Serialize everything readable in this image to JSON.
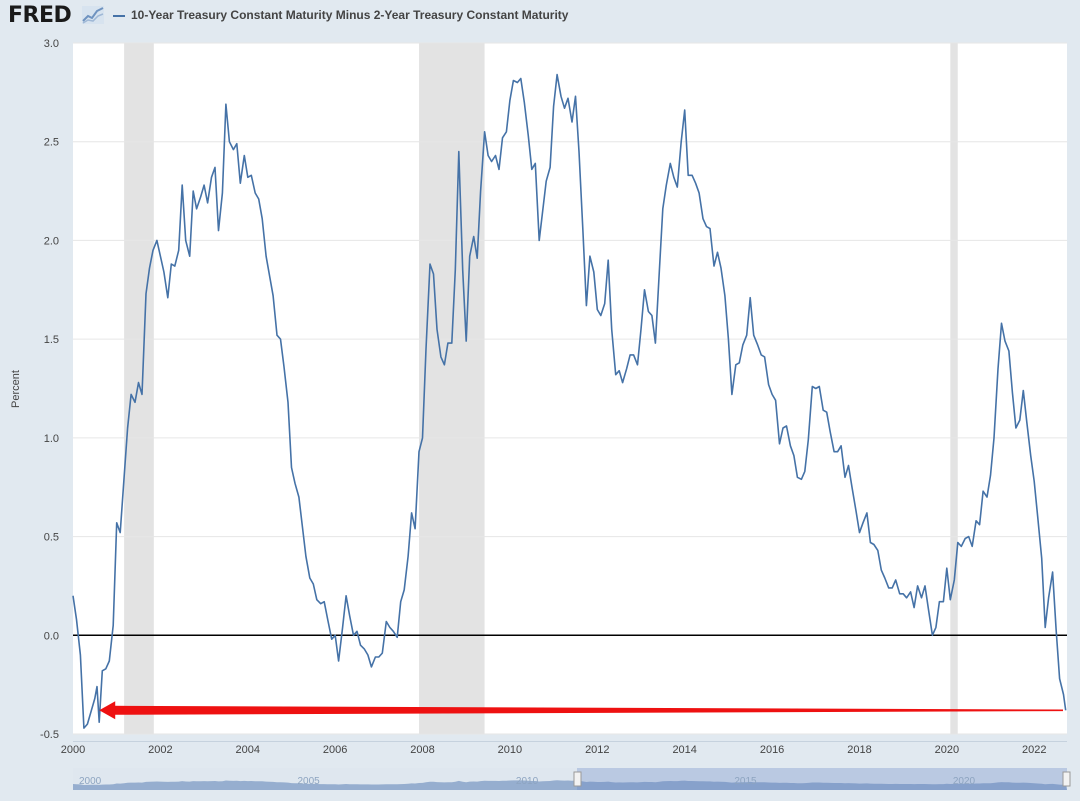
{
  "header": {
    "logo_text": "FRED",
    "logo_icon": "fred-chart-icon",
    "legend_label": "10-Year Treasury Constant Maturity Minus 2-Year Treasury Constant Maturity"
  },
  "colors": {
    "series": "#4572a7",
    "recession": "#e3e3e3",
    "zero_line": "#000000",
    "arrow": "#ee1111",
    "grid": "#e6e6e6",
    "navigator_fill": "#7d9bc4"
  },
  "chart_data": {
    "type": "line",
    "title": "",
    "xlabel": "",
    "ylabel": "Percent",
    "xlim": [
      2000.0,
      2022.75
    ],
    "ylim": [
      -0.5,
      3.0
    ],
    "y_ticks": [
      -0.5,
      0.0,
      0.5,
      1.0,
      1.5,
      2.0,
      2.5,
      3.0
    ],
    "y_tick_labels": [
      "-0.5",
      "0.0",
      "0.5",
      "1.0",
      "1.5",
      "2.0",
      "2.5",
      "3.0"
    ],
    "x_ticks": [
      2000,
      2002,
      2004,
      2006,
      2008,
      2010,
      2012,
      2014,
      2016,
      2018,
      2020,
      2022
    ],
    "x_tick_labels": [
      "2000",
      "2002",
      "2004",
      "2006",
      "2008",
      "2010",
      "2012",
      "2014",
      "2016",
      "2018",
      "2020",
      "2022"
    ],
    "grid": "horizontal",
    "reference_line_y": 0.0,
    "recessions": [
      [
        2001.17,
        2001.85
      ],
      [
        2007.92,
        2009.42
      ],
      [
        2020.08,
        2020.25
      ]
    ],
    "arrow": {
      "from": [
        2022.75,
        -0.38
      ],
      "to": [
        2000.6,
        -0.38
      ]
    },
    "navigator_labels": [
      "2000",
      "2005",
      "2010",
      "2015",
      "2020"
    ],
    "series": [
      {
        "name": "10-Year Treasury Constant Maturity Minus 2-Year Treasury Constant Maturity",
        "points": [
          [
            2000.0,
            0.2
          ],
          [
            2000.08,
            0.08
          ],
          [
            2000.17,
            -0.1
          ],
          [
            2000.25,
            -0.47
          ],
          [
            2000.33,
            -0.45
          ],
          [
            2000.42,
            -0.38
          ],
          [
            2000.5,
            -0.32
          ],
          [
            2000.55,
            -0.26
          ],
          [
            2000.6,
            -0.44
          ],
          [
            2000.67,
            -0.18
          ],
          [
            2000.75,
            -0.17
          ],
          [
            2000.83,
            -0.13
          ],
          [
            2000.92,
            0.05
          ],
          [
            2001.0,
            0.57
          ],
          [
            2001.08,
            0.52
          ],
          [
            2001.17,
            0.8
          ],
          [
            2001.25,
            1.05
          ],
          [
            2001.33,
            1.22
          ],
          [
            2001.42,
            1.18
          ],
          [
            2001.5,
            1.28
          ],
          [
            2001.58,
            1.22
          ],
          [
            2001.67,
            1.73
          ],
          [
            2001.75,
            1.86
          ],
          [
            2001.83,
            1.95
          ],
          [
            2001.92,
            2.0
          ],
          [
            2002.0,
            1.92
          ],
          [
            2002.08,
            1.84
          ],
          [
            2002.17,
            1.71
          ],
          [
            2002.25,
            1.88
          ],
          [
            2002.33,
            1.87
          ],
          [
            2002.42,
            1.95
          ],
          [
            2002.5,
            2.28
          ],
          [
            2002.58,
            2.0
          ],
          [
            2002.67,
            1.92
          ],
          [
            2002.75,
            2.25
          ],
          [
            2002.83,
            2.16
          ],
          [
            2002.92,
            2.22
          ],
          [
            2003.0,
            2.28
          ],
          [
            2003.08,
            2.19
          ],
          [
            2003.17,
            2.32
          ],
          [
            2003.25,
            2.37
          ],
          [
            2003.33,
            2.05
          ],
          [
            2003.42,
            2.24
          ],
          [
            2003.5,
            2.69
          ],
          [
            2003.58,
            2.5
          ],
          [
            2003.67,
            2.46
          ],
          [
            2003.75,
            2.49
          ],
          [
            2003.83,
            2.29
          ],
          [
            2003.92,
            2.43
          ],
          [
            2004.0,
            2.32
          ],
          [
            2004.08,
            2.33
          ],
          [
            2004.17,
            2.24
          ],
          [
            2004.25,
            2.21
          ],
          [
            2004.33,
            2.11
          ],
          [
            2004.42,
            1.92
          ],
          [
            2004.5,
            1.82
          ],
          [
            2004.58,
            1.72
          ],
          [
            2004.67,
            1.52
          ],
          [
            2004.75,
            1.5
          ],
          [
            2004.83,
            1.36
          ],
          [
            2004.92,
            1.18
          ],
          [
            2005.0,
            0.85
          ],
          [
            2005.08,
            0.77
          ],
          [
            2005.17,
            0.7
          ],
          [
            2005.25,
            0.55
          ],
          [
            2005.33,
            0.4
          ],
          [
            2005.42,
            0.29
          ],
          [
            2005.5,
            0.26
          ],
          [
            2005.58,
            0.18
          ],
          [
            2005.67,
            0.16
          ],
          [
            2005.75,
            0.17
          ],
          [
            2005.83,
            0.08
          ],
          [
            2005.92,
            -0.02
          ],
          [
            2006.0,
            0.0
          ],
          [
            2006.08,
            -0.13
          ],
          [
            2006.17,
            0.04
          ],
          [
            2006.25,
            0.2
          ],
          [
            2006.33,
            0.1
          ],
          [
            2006.42,
            0.0
          ],
          [
            2006.5,
            0.02
          ],
          [
            2006.58,
            -0.05
          ],
          [
            2006.67,
            -0.07
          ],
          [
            2006.75,
            -0.1
          ],
          [
            2006.83,
            -0.16
          ],
          [
            2006.92,
            -0.11
          ],
          [
            2007.0,
            -0.11
          ],
          [
            2007.08,
            -0.09
          ],
          [
            2007.17,
            0.07
          ],
          [
            2007.25,
            0.04
          ],
          [
            2007.33,
            0.02
          ],
          [
            2007.42,
            -0.01
          ],
          [
            2007.5,
            0.17
          ],
          [
            2007.58,
            0.23
          ],
          [
            2007.67,
            0.4
          ],
          [
            2007.75,
            0.62
          ],
          [
            2007.83,
            0.54
          ],
          [
            2007.92,
            0.93
          ],
          [
            2008.0,
            1.0
          ],
          [
            2008.08,
            1.45
          ],
          [
            2008.17,
            1.88
          ],
          [
            2008.25,
            1.83
          ],
          [
            2008.33,
            1.55
          ],
          [
            2008.42,
            1.41
          ],
          [
            2008.5,
            1.37
          ],
          [
            2008.58,
            1.48
          ],
          [
            2008.67,
            1.48
          ],
          [
            2008.75,
            1.85
          ],
          [
            2008.83,
            2.45
          ],
          [
            2008.92,
            1.85
          ],
          [
            2009.0,
            1.49
          ],
          [
            2009.08,
            1.92
          ],
          [
            2009.17,
            2.02
          ],
          [
            2009.25,
            1.91
          ],
          [
            2009.33,
            2.25
          ],
          [
            2009.42,
            2.55
          ],
          [
            2009.5,
            2.43
          ],
          [
            2009.58,
            2.4
          ],
          [
            2009.67,
            2.43
          ],
          [
            2009.75,
            2.36
          ],
          [
            2009.83,
            2.52
          ],
          [
            2009.92,
            2.55
          ],
          [
            2010.0,
            2.71
          ],
          [
            2010.08,
            2.81
          ],
          [
            2010.17,
            2.8
          ],
          [
            2010.25,
            2.82
          ],
          [
            2010.33,
            2.7
          ],
          [
            2010.42,
            2.53
          ],
          [
            2010.5,
            2.36
          ],
          [
            2010.58,
            2.39
          ],
          [
            2010.67,
            2.0
          ],
          [
            2010.75,
            2.15
          ],
          [
            2010.83,
            2.3
          ],
          [
            2010.92,
            2.37
          ],
          [
            2011.0,
            2.68
          ],
          [
            2011.08,
            2.84
          ],
          [
            2011.17,
            2.73
          ],
          [
            2011.25,
            2.67
          ],
          [
            2011.33,
            2.72
          ],
          [
            2011.42,
            2.6
          ],
          [
            2011.5,
            2.73
          ],
          [
            2011.58,
            2.45
          ],
          [
            2011.67,
            2.05
          ],
          [
            2011.75,
            1.67
          ],
          [
            2011.83,
            1.92
          ],
          [
            2011.92,
            1.84
          ],
          [
            2012.0,
            1.65
          ],
          [
            2012.08,
            1.62
          ],
          [
            2012.17,
            1.68
          ],
          [
            2012.25,
            1.9
          ],
          [
            2012.33,
            1.55
          ],
          [
            2012.42,
            1.32
          ],
          [
            2012.5,
            1.34
          ],
          [
            2012.58,
            1.28
          ],
          [
            2012.67,
            1.35
          ],
          [
            2012.75,
            1.42
          ],
          [
            2012.83,
            1.42
          ],
          [
            2012.92,
            1.37
          ],
          [
            2013.0,
            1.55
          ],
          [
            2013.08,
            1.75
          ],
          [
            2013.17,
            1.64
          ],
          [
            2013.25,
            1.62
          ],
          [
            2013.33,
            1.48
          ],
          [
            2013.42,
            1.85
          ],
          [
            2013.5,
            2.16
          ],
          [
            2013.58,
            2.28
          ],
          [
            2013.67,
            2.39
          ],
          [
            2013.75,
            2.32
          ],
          [
            2013.83,
            2.27
          ],
          [
            2013.92,
            2.5
          ],
          [
            2014.0,
            2.66
          ],
          [
            2014.08,
            2.33
          ],
          [
            2014.17,
            2.33
          ],
          [
            2014.25,
            2.29
          ],
          [
            2014.33,
            2.24
          ],
          [
            2014.42,
            2.11
          ],
          [
            2014.5,
            2.07
          ],
          [
            2014.58,
            2.06
          ],
          [
            2014.67,
            1.87
          ],
          [
            2014.75,
            1.94
          ],
          [
            2014.83,
            1.86
          ],
          [
            2014.92,
            1.72
          ],
          [
            2015.0,
            1.5
          ],
          [
            2015.08,
            1.22
          ],
          [
            2015.17,
            1.37
          ],
          [
            2015.25,
            1.38
          ],
          [
            2015.33,
            1.47
          ],
          [
            2015.42,
            1.52
          ],
          [
            2015.5,
            1.71
          ],
          [
            2015.58,
            1.52
          ],
          [
            2015.67,
            1.47
          ],
          [
            2015.75,
            1.42
          ],
          [
            2015.83,
            1.41
          ],
          [
            2015.92,
            1.27
          ],
          [
            2016.0,
            1.22
          ],
          [
            2016.08,
            1.19
          ],
          [
            2016.17,
            0.97
          ],
          [
            2016.25,
            1.05
          ],
          [
            2016.33,
            1.06
          ],
          [
            2016.42,
            0.96
          ],
          [
            2016.5,
            0.91
          ],
          [
            2016.58,
            0.8
          ],
          [
            2016.67,
            0.79
          ],
          [
            2016.75,
            0.83
          ],
          [
            2016.83,
            0.99
          ],
          [
            2016.92,
            1.26
          ],
          [
            2017.0,
            1.25
          ],
          [
            2017.08,
            1.26
          ],
          [
            2017.17,
            1.14
          ],
          [
            2017.25,
            1.13
          ],
          [
            2017.33,
            1.03
          ],
          [
            2017.42,
            0.93
          ],
          [
            2017.5,
            0.93
          ],
          [
            2017.58,
            0.96
          ],
          [
            2017.67,
            0.8
          ],
          [
            2017.75,
            0.86
          ],
          [
            2017.83,
            0.75
          ],
          [
            2017.92,
            0.63
          ],
          [
            2018.0,
            0.52
          ],
          [
            2018.08,
            0.57
          ],
          [
            2018.17,
            0.62
          ],
          [
            2018.25,
            0.47
          ],
          [
            2018.33,
            0.46
          ],
          [
            2018.42,
            0.43
          ],
          [
            2018.5,
            0.33
          ],
          [
            2018.58,
            0.29
          ],
          [
            2018.67,
            0.24
          ],
          [
            2018.75,
            0.24
          ],
          [
            2018.83,
            0.28
          ],
          [
            2018.92,
            0.21
          ],
          [
            2019.0,
            0.21
          ],
          [
            2019.08,
            0.19
          ],
          [
            2019.17,
            0.22
          ],
          [
            2019.25,
            0.14
          ],
          [
            2019.33,
            0.25
          ],
          [
            2019.42,
            0.19
          ],
          [
            2019.5,
            0.25
          ],
          [
            2019.58,
            0.13
          ],
          [
            2019.67,
            0.0
          ],
          [
            2019.75,
            0.04
          ],
          [
            2019.83,
            0.17
          ],
          [
            2019.92,
            0.17
          ],
          [
            2020.0,
            0.34
          ],
          [
            2020.08,
            0.18
          ],
          [
            2020.17,
            0.28
          ],
          [
            2020.25,
            0.47
          ],
          [
            2020.33,
            0.45
          ],
          [
            2020.42,
            0.49
          ],
          [
            2020.5,
            0.5
          ],
          [
            2020.58,
            0.45
          ],
          [
            2020.67,
            0.58
          ],
          [
            2020.75,
            0.56
          ],
          [
            2020.83,
            0.73
          ],
          [
            2020.92,
            0.7
          ],
          [
            2021.0,
            0.81
          ],
          [
            2021.08,
            1.0
          ],
          [
            2021.17,
            1.35
          ],
          [
            2021.25,
            1.58
          ],
          [
            2021.33,
            1.49
          ],
          [
            2021.42,
            1.44
          ],
          [
            2021.5,
            1.23
          ],
          [
            2021.58,
            1.05
          ],
          [
            2021.67,
            1.09
          ],
          [
            2021.75,
            1.24
          ],
          [
            2021.83,
            1.08
          ],
          [
            2021.92,
            0.91
          ],
          [
            2022.0,
            0.78
          ],
          [
            2022.08,
            0.6
          ],
          [
            2022.17,
            0.39
          ],
          [
            2022.25,
            0.04
          ],
          [
            2022.33,
            0.19
          ],
          [
            2022.42,
            0.32
          ],
          [
            2022.5,
            0.03
          ],
          [
            2022.58,
            -0.22
          ],
          [
            2022.67,
            -0.3
          ],
          [
            2022.72,
            -0.38
          ]
        ]
      }
    ]
  }
}
